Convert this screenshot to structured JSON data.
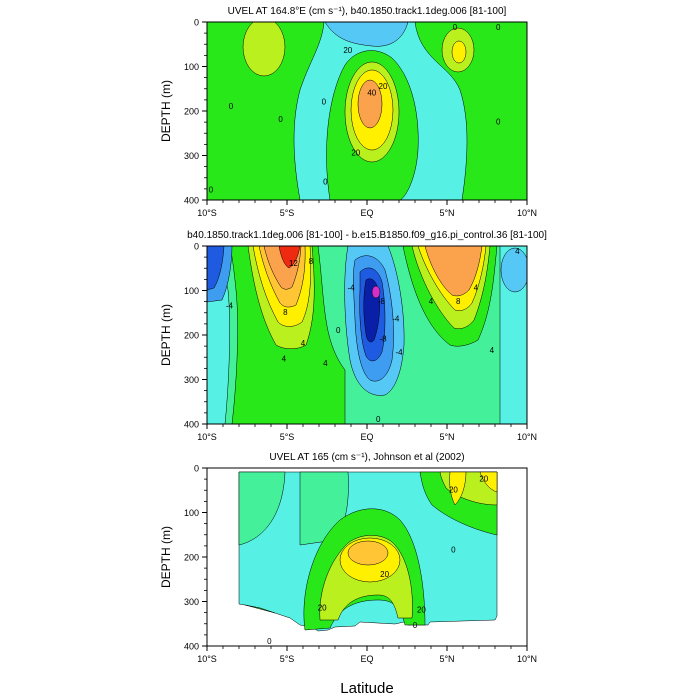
{
  "figure": {
    "x_axis_label": "Latitude",
    "x_ticks": [
      "10°S",
      "5°S",
      "EQ",
      "5°N",
      "10°N"
    ]
  },
  "palette": {
    "navy": "#0a1fa8",
    "blue": "#1f5be0",
    "dodger": "#3e9df0",
    "sky": "#56c8f5",
    "cyan": "#56f0e4",
    "seagreen": "#44f09a",
    "green": "#29e81a",
    "lime": "#b9f01e",
    "yellow": "#fff000",
    "gold": "#ffc534",
    "orange": "#fba24c",
    "darkorange": "#f58a2c",
    "red": "#ee2a10",
    "magenta": "#d430c8"
  },
  "chart_data": [
    {
      "type": "contour",
      "title": "UVEL AT 164.8°E (cm s⁻¹), b40.1850.track1.1deg.006 [81-100]",
      "ylabel": "DEPTH (m)",
      "xlabel": "Latitude",
      "xlim": [
        -10,
        10
      ],
      "ylim": [
        400,
        0
      ],
      "y_ticks": [
        "0",
        "100",
        "200",
        "300",
        "400"
      ],
      "x_ticks": [
        "10°S",
        "5°S",
        "EQ",
        "5°N",
        "10°N"
      ],
      "contour_labels": [
        {
          "text": "0",
          "x": 5.5,
          "y": 5
        },
        {
          "text": "20",
          "x": -1.2,
          "y": 70
        },
        {
          "text": "0",
          "x": -8.5,
          "y": 195
        },
        {
          "text": "0",
          "x": -5.4,
          "y": 225
        },
        {
          "text": "0",
          "x": -2.7,
          "y": 185
        },
        {
          "text": "20",
          "x": 1.0,
          "y": 150
        },
        {
          "text": "40",
          "x": 0.3,
          "y": 165
        },
        {
          "text": "20",
          "x": -0.7,
          "y": 300
        },
        {
          "text": "0",
          "x": 8.2,
          "y": 230
        },
        {
          "text": "0",
          "x": -10.8,
          "y": 383
        },
        {
          "text": "0",
          "x": -2.6,
          "y": 365
        },
        {
          "text": "0",
          "x": 8.2,
          "y": 10
        }
      ]
    },
    {
      "type": "contour",
      "title": "b40.1850.track1.1deg.006 [81-100] - b.e15.B1850.f09_g16.pi_control.36 [81-100]",
      "ylabel": "DEPTH (m)",
      "xlabel": "Latitude",
      "xlim": [
        -10,
        10
      ],
      "ylim": [
        400,
        0
      ],
      "y_ticks": [
        "0",
        "100",
        "200",
        "300",
        "400"
      ],
      "x_ticks": [
        "10°S",
        "5°S",
        "EQ",
        "5°N",
        "10°N"
      ],
      "contour_labels": [
        {
          "text": "12",
          "x": -4.6,
          "y": 45
        },
        {
          "text": "8",
          "x": -3.5,
          "y": 40
        },
        {
          "text": "4",
          "x": -4.0,
          "y": 225
        },
        {
          "text": "-4",
          "x": -8.6,
          "y": 140
        },
        {
          "text": "8",
          "x": -5.1,
          "y": 155
        },
        {
          "text": "4",
          "x": -5.2,
          "y": 260
        },
        {
          "text": "4",
          "x": -2.6,
          "y": 270
        },
        {
          "text": "-4",
          "x": -1.0,
          "y": 100
        },
        {
          "text": "-8",
          "x": 0.9,
          "y": 130
        },
        {
          "text": "-4",
          "x": 1.8,
          "y": 170
        },
        {
          "text": "-8",
          "x": 1.0,
          "y": 215
        },
        {
          "text": "-4",
          "x": 2.0,
          "y": 245
        },
        {
          "text": "0",
          "x": -1.8,
          "y": 195
        },
        {
          "text": "4",
          "x": 4.0,
          "y": 130
        },
        {
          "text": "8",
          "x": 5.7,
          "y": 130
        },
        {
          "text": "4",
          "x": 6.8,
          "y": 100
        },
        {
          "text": "4",
          "x": 7.8,
          "y": 240
        },
        {
          "text": "4",
          "x": 9.4,
          "y": 10
        },
        {
          "text": "0",
          "x": 0.7,
          "y": 395
        }
      ]
    },
    {
      "type": "contour",
      "title": "UVEL AT 165 (cm s⁻¹), Johnson et al (2002)",
      "ylabel": "DEPTH (m)",
      "xlabel": "Latitude",
      "xlim": [
        -10,
        10
      ],
      "ylim": [
        400,
        0
      ],
      "y_ticks": [
        "0",
        "100",
        "200",
        "300",
        "400"
      ],
      "x_ticks": [
        "10°S",
        "5°S",
        "EQ",
        "5°N",
        "10°N"
      ],
      "contour_labels": [
        {
          "text": "20",
          "x": 7.3,
          "y": 30
        },
        {
          "text": "20",
          "x": 5.4,
          "y": 55
        },
        {
          "text": "20",
          "x": 1.1,
          "y": 245
        },
        {
          "text": "20",
          "x": -2.8,
          "y": 320
        },
        {
          "text": "20",
          "x": 3.4,
          "y": 325
        },
        {
          "text": "0",
          "x": 5.4,
          "y": 190
        },
        {
          "text": "0",
          "x": -6.1,
          "y": 600
        },
        {
          "text": "0",
          "x": 3.0,
          "y": 360
        }
      ]
    }
  ]
}
